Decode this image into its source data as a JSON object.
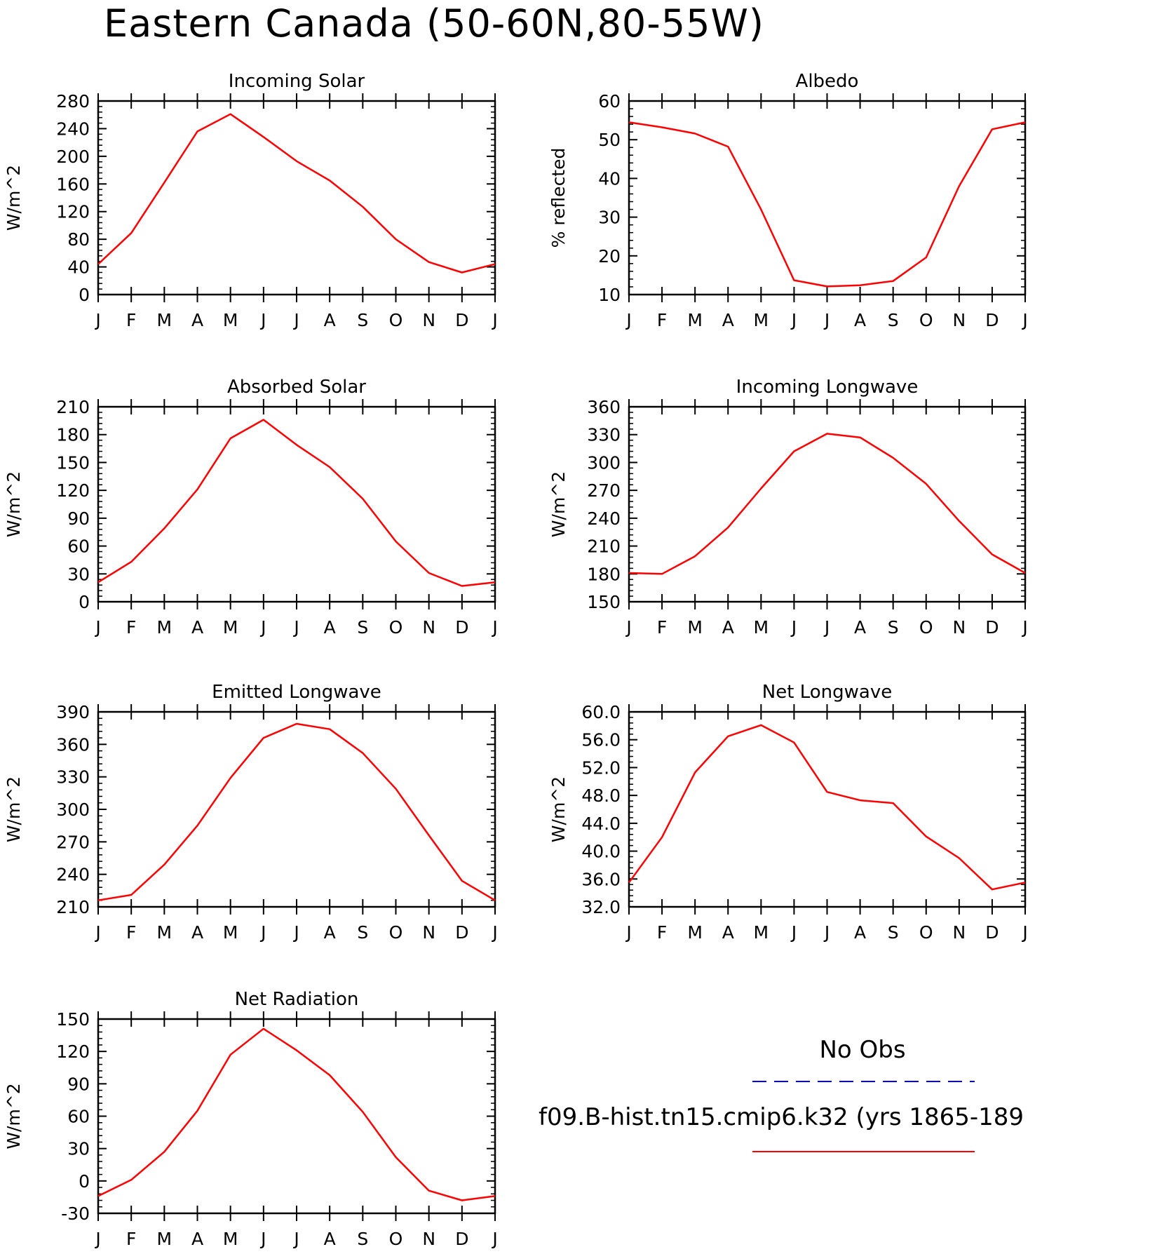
{
  "figure": {
    "title": "Eastern Canada (50-60N,80-55W)"
  },
  "months": [
    "J",
    "F",
    "M",
    "A",
    "M",
    "J",
    "J",
    "A",
    "S",
    "O",
    "N",
    "D",
    "J"
  ],
  "legend": {
    "obs_label": "No Obs",
    "obs_color": "#0000ff",
    "model_label": "f09.B-hist.tn15.cmip6.k32 (yrs 1865-189",
    "model_color": "#ff0000"
  },
  "chart_data": [
    {
      "type": "line",
      "title": "Incoming Solar",
      "ylabel": "W/m^2",
      "ylim": [
        0,
        280
      ],
      "yticks": [
        "0",
        "40",
        "80",
        "120",
        "160",
        "200",
        "240",
        "280"
      ],
      "categories": [
        "J",
        "F",
        "M",
        "A",
        "M",
        "J",
        "J",
        "A",
        "S",
        "O",
        "N",
        "D",
        "J"
      ],
      "series": [
        {
          "values": [
            44,
            89,
            162,
            236,
            261,
            228,
            193,
            165,
            127,
            80,
            47,
            32,
            44
          ]
        }
      ]
    },
    {
      "type": "line",
      "title": "Albedo",
      "ylabel": "% reflected",
      "ylim": [
        10,
        60
      ],
      "yticks": [
        "10",
        "20",
        "30",
        "40",
        "50",
        "60"
      ],
      "categories": [
        "J",
        "F",
        "M",
        "A",
        "M",
        "J",
        "J",
        "A",
        "S",
        "O",
        "N",
        "D",
        "J"
      ],
      "series": [
        {
          "values": [
            54.5,
            53.2,
            51.6,
            48.2,
            32.0,
            13.7,
            12.1,
            12.4,
            13.5,
            19.6,
            38.0,
            52.7,
            54.5
          ]
        }
      ]
    },
    {
      "type": "line",
      "title": "Absorbed Solar",
      "ylabel": "W/m^2",
      "ylim": [
        0,
        210
      ],
      "yticks": [
        "0",
        "30",
        "60",
        "90",
        "120",
        "150",
        "180",
        "210"
      ],
      "categories": [
        "J",
        "F",
        "M",
        "A",
        "M",
        "J",
        "J",
        "A",
        "S",
        "O",
        "N",
        "D",
        "J"
      ],
      "series": [
        {
          "values": [
            21,
            43,
            79,
            121,
            176,
            196,
            169,
            145,
            111,
            65,
            31,
            17,
            21
          ]
        }
      ]
    },
    {
      "type": "line",
      "title": "Incoming Longwave",
      "ylabel": "W/m^2",
      "ylim": [
        150,
        360
      ],
      "yticks": [
        "150",
        "180",
        "210",
        "240",
        "270",
        "300",
        "330",
        "360"
      ],
      "categories": [
        "J",
        "F",
        "M",
        "A",
        "M",
        "J",
        "J",
        "A",
        "S",
        "O",
        "N",
        "D",
        "J"
      ],
      "series": [
        {
          "values": [
            181,
            180,
            199,
            230,
            272,
            312,
            331,
            327,
            305,
            277,
            237,
            201,
            181
          ]
        }
      ]
    },
    {
      "type": "line",
      "title": "Emitted Longwave",
      "ylabel": "W/m^2",
      "ylim": [
        210,
        390
      ],
      "yticks": [
        "210",
        "240",
        "270",
        "300",
        "330",
        "360",
        "390"
      ],
      "categories": [
        "J",
        "F",
        "M",
        "A",
        "M",
        "J",
        "J",
        "A",
        "S",
        "O",
        "N",
        "D",
        "J"
      ],
      "series": [
        {
          "values": [
            216,
            221,
            249,
            285,
            329,
            366,
            379,
            374,
            352,
            319,
            276,
            234,
            216
          ]
        }
      ]
    },
    {
      "type": "line",
      "title": "Net Longwave",
      "ylabel": "W/m^2",
      "ylim": [
        32,
        60
      ],
      "yticks": [
        "32.0",
        "36.0",
        "40.0",
        "44.0",
        "48.0",
        "52.0",
        "56.0",
        "60.0"
      ],
      "categories": [
        "J",
        "F",
        "M",
        "A",
        "M",
        "J",
        "J",
        "A",
        "S",
        "O",
        "N",
        "D",
        "J"
      ],
      "series": [
        {
          "values": [
            35.5,
            42.0,
            51.3,
            56.5,
            58.1,
            55.6,
            48.5,
            47.3,
            46.9,
            42.1,
            39.0,
            34.5,
            35.5
          ]
        }
      ]
    },
    {
      "type": "line",
      "title": "Net Radiation",
      "ylabel": "W/m^2",
      "ylim": [
        -30,
        150
      ],
      "yticks": [
        "-30",
        "0",
        "30",
        "60",
        "90",
        "120",
        "150"
      ],
      "categories": [
        "J",
        "F",
        "M",
        "A",
        "M",
        "J",
        "J",
        "A",
        "S",
        "O",
        "N",
        "D",
        "J"
      ],
      "series": [
        {
          "values": [
            -14,
            1,
            27,
            65,
            117,
            141,
            121,
            98,
            64,
            22,
            -9,
            -18,
            -14
          ]
        }
      ]
    }
  ]
}
